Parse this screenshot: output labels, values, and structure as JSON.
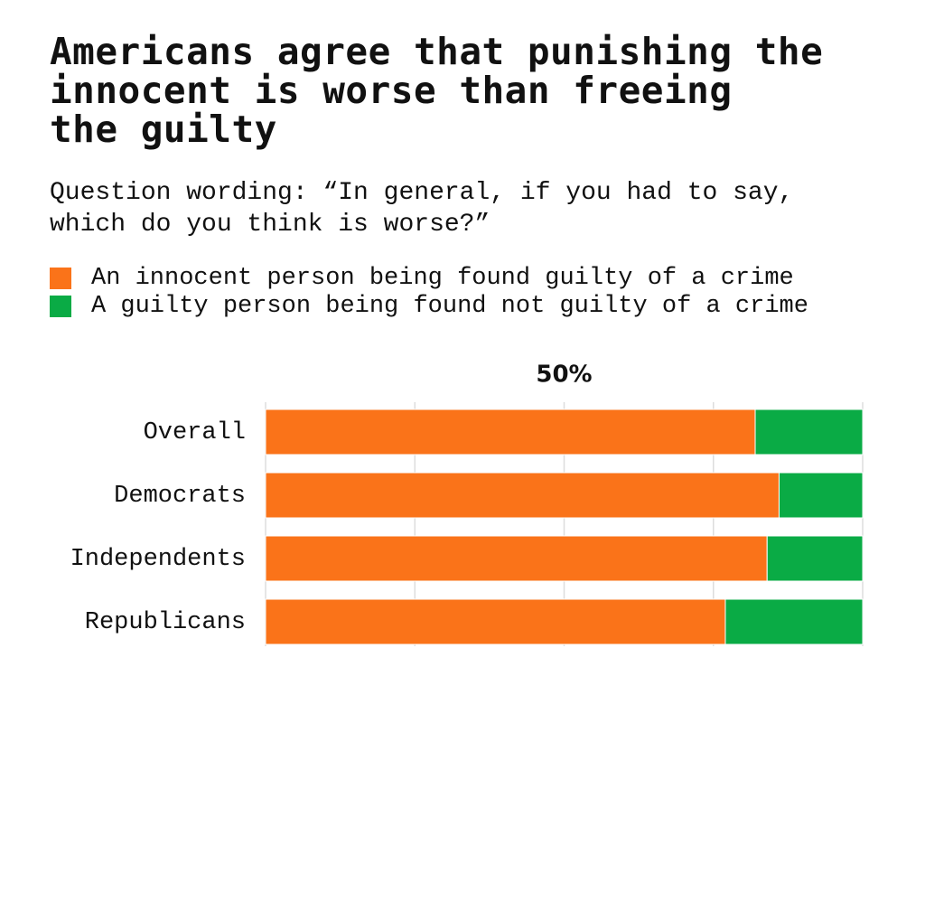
{
  "chart_data": {
    "type": "stacked-bar-horizontal",
    "title": "Americans agree that punishing the\ninnocent is worse than freeing\nthe guilty",
    "subtitle": "Question wording: “In general, if you had to say,\nwhich do you think is worse?”",
    "categories": [
      "Overall",
      "Democrats",
      "Independents",
      "Republicans"
    ],
    "series": [
      {
        "name": "An innocent person being found guilty of a crime",
        "color": "#fa7319",
        "values": [
          82,
          86,
          84,
          77
        ]
      },
      {
        "name": "A guilty person being found not guilty of a crime",
        "color": "#0aab45",
        "values": [
          18,
          14,
          16,
          23
        ]
      }
    ],
    "xlim": [
      0,
      100
    ],
    "xticks": [
      {
        "value": 0,
        "label": null
      },
      {
        "value": 25,
        "label": null
      },
      {
        "value": 50,
        "label": "50%"
      },
      {
        "value": 75,
        "label": null
      },
      {
        "value": 100,
        "label": null
      }
    ],
    "grid": true
  }
}
